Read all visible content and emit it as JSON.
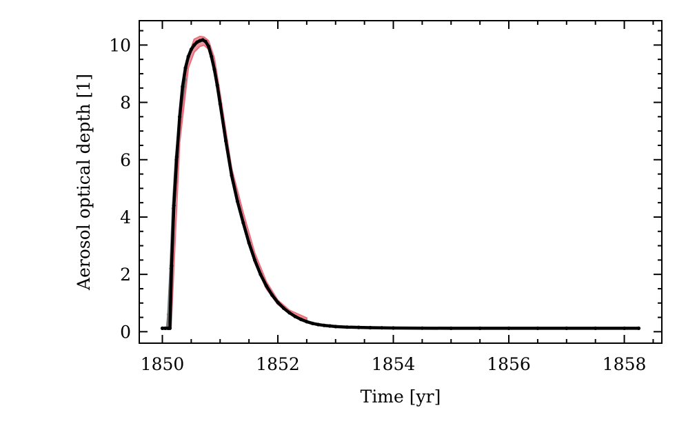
{
  "chart_data": {
    "type": "line",
    "title": "",
    "xlabel": "Time [yr]",
    "ylabel": "Aerosol optical depth [1]",
    "xlim": [
      1849.6,
      1858.65
    ],
    "ylim": [
      -0.4,
      10.85
    ],
    "x_ticks": [
      1850,
      1852,
      1854,
      1856,
      1858
    ],
    "x_tick_labels": [
      "1850",
      "1852",
      "1854",
      "1856",
      "1858"
    ],
    "y_ticks": [
      0,
      2,
      4,
      6,
      8,
      10
    ],
    "y_tick_labels": [
      "0",
      "2",
      "4",
      "6",
      "8",
      "10"
    ],
    "x_minor_step": 0.5,
    "y_minor_step": 0.5,
    "grid": false,
    "legend": "none",
    "series": [
      {
        "style": "envelope",
        "color": "#e8707c",
        "x": [
          1850.05,
          1850.15,
          1850.3,
          1850.45,
          1850.55,
          1850.65,
          1850.72,
          1850.8,
          1850.9,
          1851.0,
          1851.2,
          1851.4,
          1851.6,
          1851.8,
          1852.0,
          1852.2,
          1852.5
        ],
        "lower": [
          0.12,
          0.12,
          6.6,
          9.2,
          9.75,
          9.95,
          10.0,
          9.85,
          9.1,
          7.8,
          5.3,
          3.7,
          2.4,
          1.5,
          0.95,
          0.65,
          0.4
        ],
        "upper": [
          0.12,
          0.12,
          6.9,
          9.6,
          10.2,
          10.3,
          10.28,
          10.15,
          9.55,
          8.3,
          5.7,
          4.15,
          2.75,
          1.75,
          1.1,
          0.75,
          0.48
        ]
      },
      {
        "style": "gray-line",
        "color": "#777777",
        "x": [
          1850.08,
          1850.1,
          1850.14,
          1850.18,
          1850.23,
          1850.3,
          1850.4
        ],
        "y": [
          0.12,
          0.6,
          2.2,
          4.3,
          6.0,
          7.5,
          8.8
        ]
      },
      {
        "style": "black-line",
        "color": "#000000",
        "x": [
          1850.0,
          1850.05,
          1850.1,
          1850.13,
          1850.16,
          1850.2,
          1850.25,
          1850.3,
          1850.35,
          1850.4,
          1850.45,
          1850.5,
          1850.55,
          1850.6,
          1850.65,
          1850.7,
          1850.75,
          1850.8,
          1850.85,
          1850.9,
          1850.95,
          1851.0,
          1851.1,
          1851.2,
          1851.3,
          1851.4,
          1851.5,
          1851.6,
          1851.7,
          1851.8,
          1851.9,
          1852.0,
          1852.1,
          1852.2,
          1852.3,
          1852.4,
          1852.5,
          1852.6,
          1852.7,
          1852.8,
          1852.9,
          1853.0,
          1853.2,
          1853.4,
          1853.6,
          1853.8,
          1854.0,
          1854.5,
          1855.0,
          1855.5,
          1856.0,
          1856.5,
          1857.0,
          1857.5,
          1858.0,
          1858.25
        ],
        "y": [
          0.12,
          0.12,
          0.12,
          0.12,
          2.3,
          4.4,
          6.1,
          7.5,
          8.55,
          9.2,
          9.6,
          9.85,
          10.0,
          10.1,
          10.15,
          10.18,
          10.12,
          9.95,
          9.6,
          9.15,
          8.6,
          7.95,
          6.65,
          5.45,
          4.55,
          3.8,
          3.1,
          2.5,
          2.0,
          1.6,
          1.28,
          1.02,
          0.82,
          0.66,
          0.53,
          0.43,
          0.35,
          0.29,
          0.25,
          0.22,
          0.2,
          0.18,
          0.16,
          0.15,
          0.14,
          0.135,
          0.13,
          0.125,
          0.12,
          0.12,
          0.12,
          0.12,
          0.12,
          0.12,
          0.12,
          0.12
        ]
      }
    ]
  }
}
